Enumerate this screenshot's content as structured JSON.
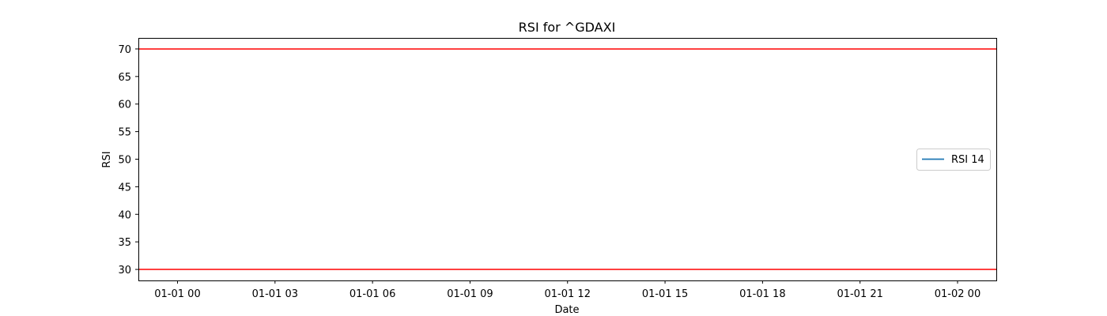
{
  "chart_data": {
    "type": "line",
    "title": "RSI for ^GDAXI",
    "xlabel": "Date",
    "ylabel": "RSI",
    "x_tick_labels": [
      "01-01 00",
      "01-01 03",
      "01-01 06",
      "01-01 09",
      "01-01 12",
      "01-01 15",
      "01-01 18",
      "01-01 21",
      "01-02 00"
    ],
    "y_ticks": [
      30,
      35,
      40,
      45,
      50,
      55,
      60,
      65,
      70
    ],
    "ylim": [
      28,
      72
    ],
    "series": [
      {
        "name": "RSI 14",
        "color": "#1f77b4",
        "values": []
      }
    ],
    "reference_lines": [
      {
        "y": 70,
        "color": "#ff0000"
      },
      {
        "y": 30,
        "color": "#ff0000"
      }
    ],
    "grid": false,
    "legend_position": "center-right"
  }
}
